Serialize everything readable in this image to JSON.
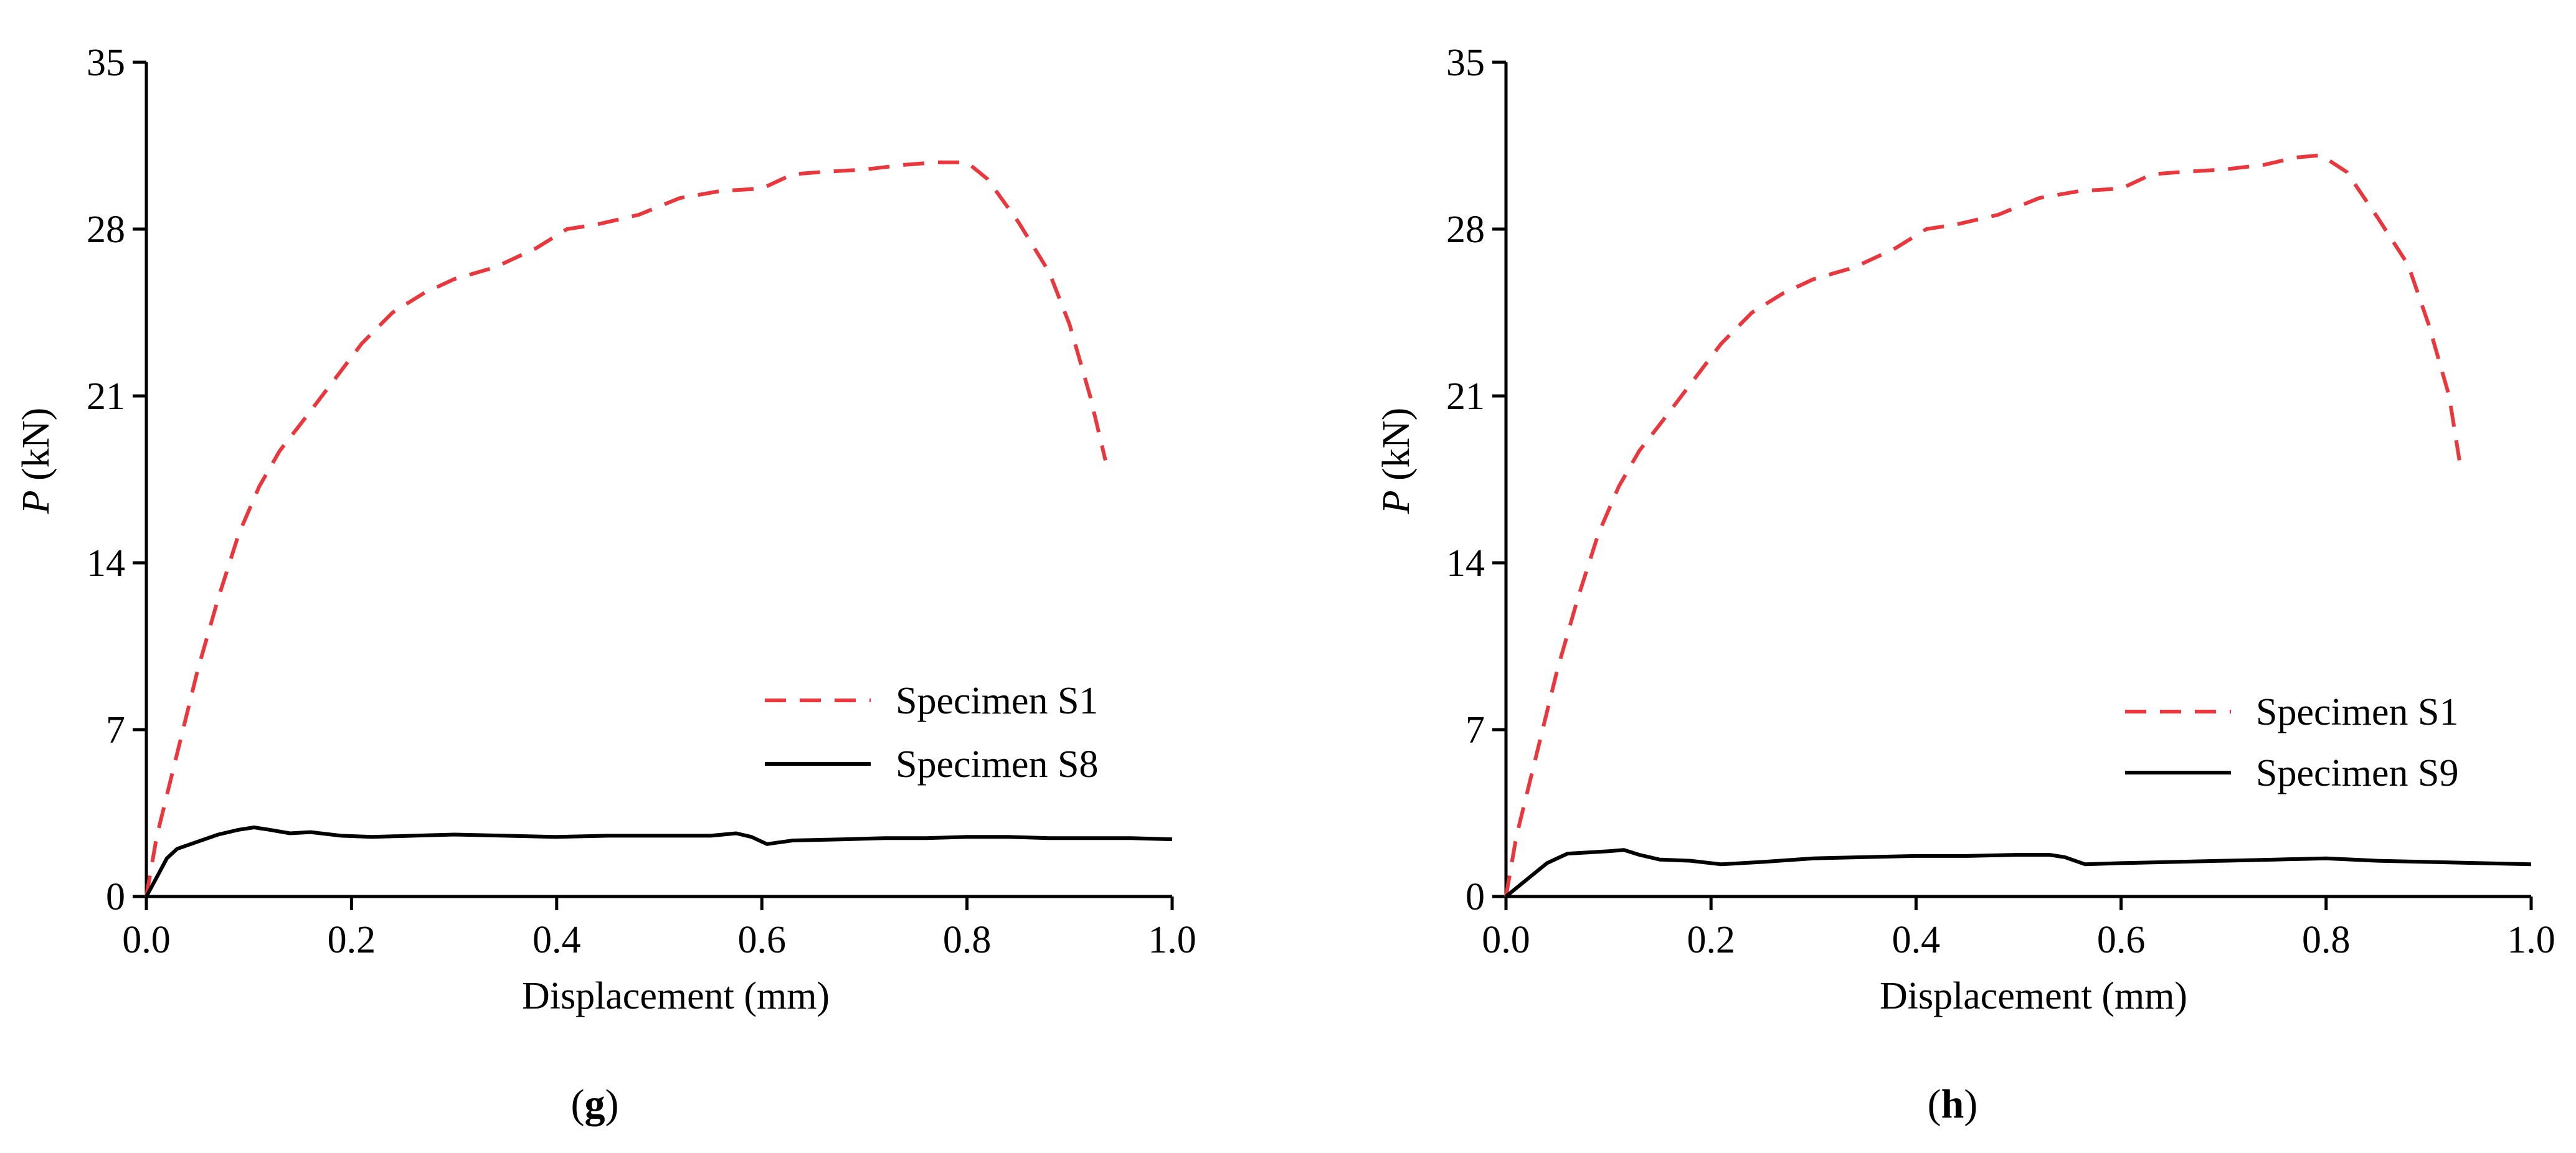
{
  "figure": {
    "panels": [
      {
        "id": "g",
        "label_open": "(",
        "label_letter": "g",
        "label_close": ")"
      },
      {
        "id": "h",
        "label_open": "(",
        "label_letter": "h",
        "label_close": ")"
      }
    ]
  },
  "chart_data": [
    {
      "type": "line",
      "panel": "g",
      "xlabel": "Displacement (mm)",
      "ylabel_var": "P",
      "ylabel_unit": " (kN)",
      "xlim": [
        0,
        1.0
      ],
      "ylim": [
        0,
        35
      ],
      "xticks": [
        0.0,
        0.2,
        0.4,
        0.6,
        0.8,
        1.0
      ],
      "xtick_labels": [
        "0.0",
        "0.2",
        "0.4",
        "0.6",
        "0.8",
        "1.0"
      ],
      "yticks": [
        0,
        7,
        14,
        21,
        28,
        35
      ],
      "ytick_labels": [
        "0",
        "7",
        "14",
        "21",
        "28",
        "35"
      ],
      "legend_position": "center-right",
      "series": [
        {
          "name": "Specimen S1",
          "color": "#e8383d",
          "style": "dashed",
          "x": [
            0,
            0.01,
            0.03,
            0.05,
            0.07,
            0.09,
            0.11,
            0.13,
            0.15,
            0.18,
            0.21,
            0.24,
            0.27,
            0.3,
            0.34,
            0.38,
            0.41,
            0.44,
            0.48,
            0.52,
            0.56,
            0.6,
            0.63,
            0.66,
            0.7,
            0.74,
            0.77,
            0.8,
            0.82,
            0.85,
            0.88,
            0.9,
            0.92,
            0.935
          ],
          "y": [
            0,
            2.5,
            6,
            9.5,
            12.5,
            15.2,
            17.2,
            18.7,
            19.8,
            21.5,
            23.2,
            24.5,
            25.3,
            25.9,
            26.4,
            27.2,
            28,
            28.2,
            28.6,
            29.3,
            29.6,
            29.7,
            30.3,
            30.4,
            30.5,
            30.7,
            30.8,
            30.8,
            30.1,
            28.3,
            26.2,
            24,
            21,
            18.3
          ]
        },
        {
          "name": "Specimen S8",
          "color": "#000000",
          "style": "solid",
          "x": [
            0,
            0.01,
            0.02,
            0.03,
            0.05,
            0.07,
            0.09,
            0.105,
            0.12,
            0.14,
            0.16,
            0.19,
            0.22,
            0.26,
            0.3,
            0.35,
            0.4,
            0.45,
            0.5,
            0.55,
            0.575,
            0.59,
            0.605,
            0.63,
            0.68,
            0.72,
            0.76,
            0.8,
            0.84,
            0.88,
            0.92,
            0.96,
            1.0
          ],
          "y": [
            0,
            0.8,
            1.6,
            2.0,
            2.3,
            2.6,
            2.8,
            2.9,
            2.8,
            2.65,
            2.7,
            2.55,
            2.5,
            2.55,
            2.6,
            2.55,
            2.5,
            2.55,
            2.55,
            2.55,
            2.65,
            2.5,
            2.2,
            2.35,
            2.4,
            2.45,
            2.45,
            2.5,
            2.5,
            2.45,
            2.45,
            2.45,
            2.4
          ]
        }
      ]
    },
    {
      "type": "line",
      "panel": "h",
      "xlabel": "Displacement (mm)",
      "ylabel_var": "P",
      "ylabel_unit": " (kN)",
      "xlim": [
        0,
        1.0
      ],
      "ylim": [
        0,
        35
      ],
      "xticks": [
        0.0,
        0.2,
        0.4,
        0.6,
        0.8,
        1.0
      ],
      "xtick_labels": [
        "0.0",
        "0.2",
        "0.4",
        "0.6",
        "0.8",
        "1.0"
      ],
      "yticks": [
        0,
        7,
        14,
        21,
        28,
        35
      ],
      "ytick_labels": [
        "0",
        "7",
        "14",
        "21",
        "28",
        "35"
      ],
      "legend_position": "center-right",
      "series": [
        {
          "name": "Specimen S1",
          "color": "#e8383d",
          "style": "dashed",
          "x": [
            0,
            0.01,
            0.03,
            0.05,
            0.07,
            0.09,
            0.11,
            0.13,
            0.15,
            0.18,
            0.21,
            0.24,
            0.27,
            0.3,
            0.34,
            0.38,
            0.41,
            0.44,
            0.48,
            0.52,
            0.56,
            0.6,
            0.63,
            0.66,
            0.7,
            0.74,
            0.77,
            0.795,
            0.82,
            0.85,
            0.88,
            0.9,
            0.92,
            0.93
          ],
          "y": [
            0,
            2.5,
            6,
            9.5,
            12.5,
            15.2,
            17.2,
            18.7,
            19.8,
            21.5,
            23.2,
            24.5,
            25.3,
            25.9,
            26.4,
            27.2,
            28,
            28.2,
            28.6,
            29.3,
            29.6,
            29.7,
            30.3,
            30.4,
            30.5,
            30.7,
            31.0,
            31.1,
            30.4,
            28.5,
            26.5,
            24,
            21,
            18.3
          ]
        },
        {
          "name": "Specimen S9",
          "color": "#000000",
          "style": "solid",
          "x": [
            0,
            0.02,
            0.04,
            0.06,
            0.08,
            0.1,
            0.115,
            0.13,
            0.15,
            0.18,
            0.21,
            0.25,
            0.3,
            0.35,
            0.4,
            0.45,
            0.5,
            0.53,
            0.545,
            0.565,
            0.6,
            0.65,
            0.7,
            0.75,
            0.8,
            0.85,
            0.9,
            0.95,
            1.0
          ],
          "y": [
            0,
            0.7,
            1.4,
            1.8,
            1.85,
            1.9,
            1.95,
            1.75,
            1.55,
            1.5,
            1.35,
            1.45,
            1.6,
            1.65,
            1.7,
            1.7,
            1.75,
            1.75,
            1.65,
            1.35,
            1.4,
            1.45,
            1.5,
            1.55,
            1.6,
            1.5,
            1.45,
            1.4,
            1.35
          ]
        }
      ]
    }
  ]
}
